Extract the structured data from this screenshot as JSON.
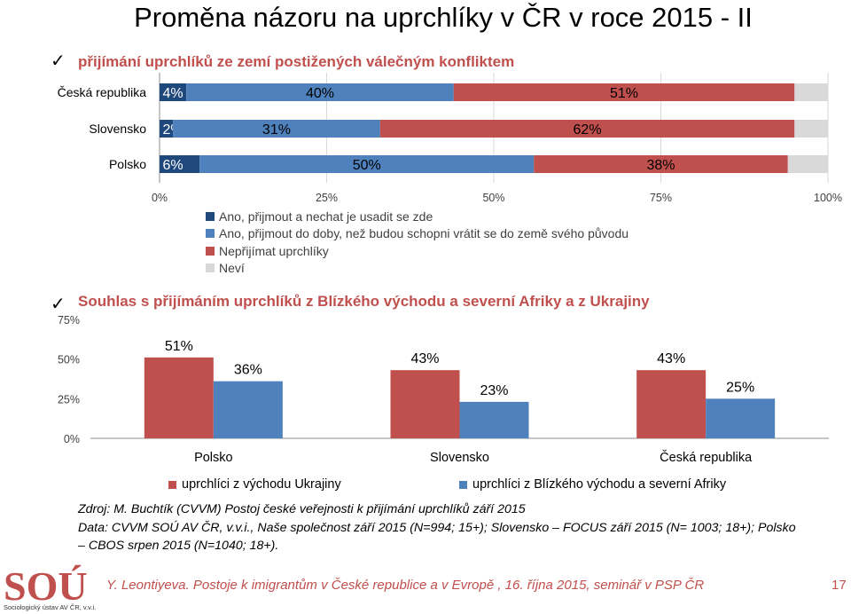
{
  "title": "Proměna názoru na uprchlíky v ČR v roce 2015 - II",
  "section1": {
    "check": "✓",
    "title": "přijímání uprchlíků ze zemí postižených válečným konfliktem"
  },
  "section2": {
    "check": "✓",
    "title": "Souhlas s přijímáním uprchlíků z Blízkého východu a severní Afriky a z Ukrajiny"
  },
  "chart_data": [
    {
      "type": "bar",
      "orientation": "horizontal",
      "stacked": "percent",
      "categories": [
        "Česká republika",
        "Slovensko",
        "Polsko"
      ],
      "series": [
        {
          "name": "Ano, přijmout a nechat je usadit se zde",
          "values": [
            4,
            2,
            6
          ],
          "labels": [
            "4%",
            "2%",
            "6%"
          ],
          "color": "#1f497d",
          "label_color": "#ffffff"
        },
        {
          "name": "Ano, přijmout do doby, než budou schopni vrátit se do země svého původu",
          "values": [
            40,
            31,
            50
          ],
          "labels": [
            "40%",
            "31%",
            "50%"
          ],
          "color": "#4f81bd",
          "label_color": "#000000"
        },
        {
          "name": "Nepřijímat uprchlíky",
          "values": [
            51,
            62,
            38
          ],
          "labels": [
            "51%",
            "62%",
            "38%"
          ],
          "color": "#c0504d",
          "label_color": "#000000"
        },
        {
          "name": "Neví",
          "values": [
            5,
            5,
            6
          ],
          "color": "#d9d9d9"
        }
      ],
      "xlim": [
        0,
        100
      ],
      "xticks": [
        "0%",
        "25%",
        "50%",
        "75%",
        "100%"
      ],
      "xtick_values": [
        0,
        25,
        50,
        75,
        100
      ],
      "grid": true,
      "legend_position": "bottom"
    },
    {
      "type": "bar",
      "categories": [
        "Polsko",
        "Slovensko",
        "Česká republika"
      ],
      "series": [
        {
          "name": "uprchlíci z východu Ukrajiny",
          "values": [
            51,
            43,
            43
          ],
          "labels": [
            "51%",
            "43%",
            "43%"
          ],
          "color": "#c0504d"
        },
        {
          "name": "uprchlíci z Blízkého východu a severní Afriky",
          "values": [
            36,
            23,
            25
          ],
          "labels": [
            "36%",
            "23%",
            "25%"
          ],
          "color": "#4f81bd"
        }
      ],
      "ylim": [
        0,
        75
      ],
      "yticks": [
        "0%",
        "25%",
        "50%",
        "75%"
      ],
      "ytick_values": [
        0,
        25,
        50,
        75
      ],
      "grid": false,
      "legend_position": "bottom"
    }
  ],
  "source": {
    "line1": "Zdroj: M. Buchtík (CVVM) Postoj české veřejnosti k přijímání uprchlíků září 2015",
    "line2": "Data: CVVM SOÚ AV ČR, v.v.i., Naše společnost  září 2015 (N=994; 15+); Slovensko – FOCUS září 2015 (N= 1003; 18+); Polsko",
    "line3": "– CBOS srpen 2015 (N=1040; 18+)."
  },
  "footer": {
    "text": "Y. Leontiyeva. Postoje k imigrantům v České republice a v Evropě , 16. října 2015, seminář v PSP ČR",
    "page_number": "17",
    "logo_text": "SOÚ",
    "logo_caption": "Sociologický ústav AV ČR, v.v.i."
  }
}
